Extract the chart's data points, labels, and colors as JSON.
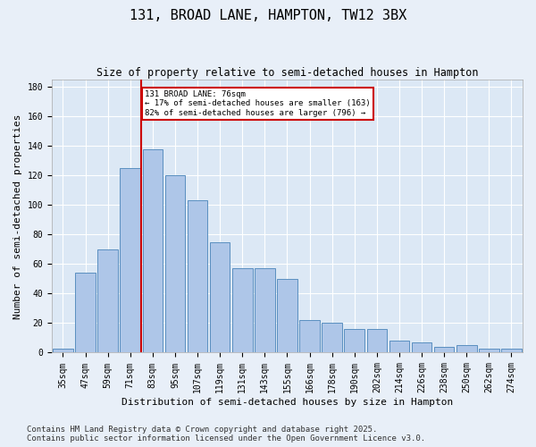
{
  "title": "131, BROAD LANE, HAMPTON, TW12 3BX",
  "subtitle": "Size of property relative to semi-detached houses in Hampton",
  "xlabel": "Distribution of semi-detached houses by size in Hampton",
  "ylabel": "Number of semi-detached properties",
  "categories": [
    "35sqm",
    "47sqm",
    "59sqm",
    "71sqm",
    "83sqm",
    "95sqm",
    "107sqm",
    "119sqm",
    "131sqm",
    "143sqm",
    "155sqm",
    "166sqm",
    "178sqm",
    "190sqm",
    "202sqm",
    "214sqm",
    "226sqm",
    "238sqm",
    "250sqm",
    "262sqm",
    "274sqm"
  ],
  "values": [
    3,
    54,
    70,
    125,
    138,
    120,
    103,
    75,
    57,
    57,
    50,
    22,
    20,
    16,
    16,
    8,
    7,
    4,
    5,
    3,
    3
  ],
  "bar_color": "#aec6e8",
  "bar_edge_color": "#5a8fc0",
  "vline_color": "#cc0000",
  "annotation_title": "131 BROAD LANE: 76sqm",
  "annotation_line1": "← 17% of semi-detached houses are smaller (163)",
  "annotation_line2": "82% of semi-detached houses are larger (796) →",
  "annotation_box_color": "#cc0000",
  "footer1": "Contains HM Land Registry data © Crown copyright and database right 2025.",
  "footer2": "Contains public sector information licensed under the Open Government Licence v3.0.",
  "ylim": [
    0,
    185
  ],
  "bg_color": "#e8eff8",
  "plot_bg_color": "#dce8f5",
  "grid_color": "#ffffff",
  "title_fontsize": 11,
  "subtitle_fontsize": 8.5,
  "axis_fontsize": 8,
  "tick_fontsize": 7,
  "footer_fontsize": 6.5
}
